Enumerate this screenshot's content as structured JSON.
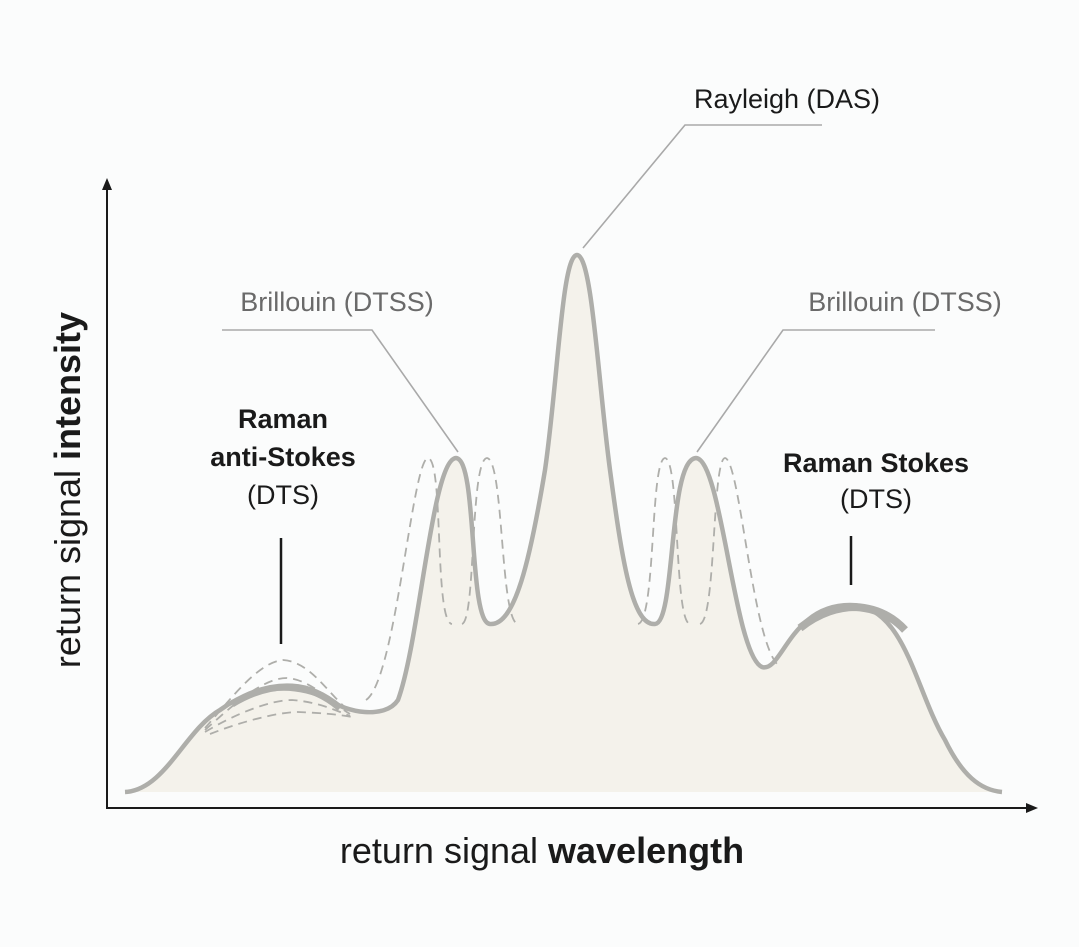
{
  "labels": {
    "y_axis": {
      "normal": "return signal ",
      "bold": "intensity"
    },
    "x_axis": {
      "normal": "return signal ",
      "bold": "wavelength"
    },
    "rayleigh": "Rayleigh (DAS)",
    "brillouin_left": "Brillouin (DTSS)",
    "brillouin_right": "Brillouin (DTSS)",
    "raman_anti_stokes_line1": "Raman",
    "raman_anti_stokes_line2": "anti-Stokes",
    "raman_anti_stokes_line3": "(DTS)",
    "raman_stokes_line1": "Raman Stokes",
    "raman_stokes_line2": "(DTS)"
  },
  "colors": {
    "fill": "#f4f2eb",
    "curve": "#aeaeaa",
    "dashed": "#aeaeaa",
    "leader": "#a9a9a9",
    "axis": "#1a1a1a",
    "text_dark": "#1a1a1a",
    "text_grey": "#6a6a6a"
  }
}
